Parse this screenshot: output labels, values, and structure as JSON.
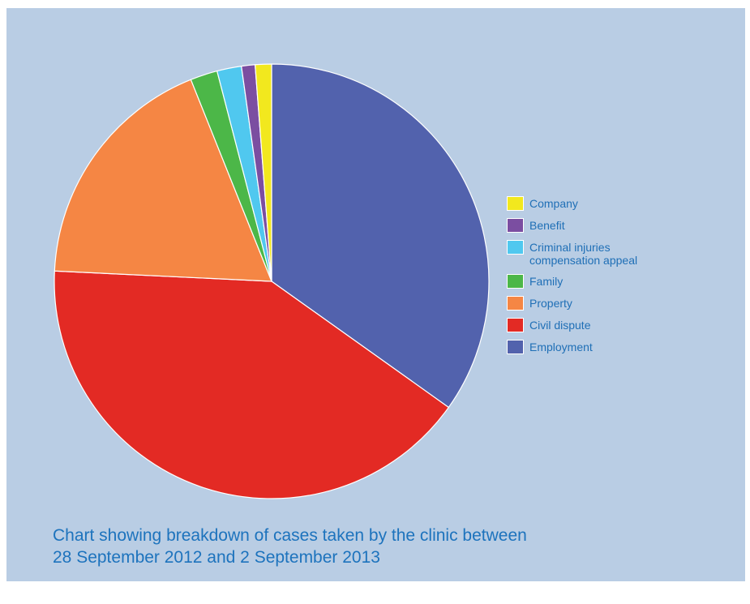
{
  "chart_data": {
    "type": "pie",
    "slices": [
      {
        "label": "Employment",
        "value": 34.5,
        "color": "#5262ad"
      },
      {
        "label": "Civil dispute",
        "value": 40.5,
        "color": "#e32a24"
      },
      {
        "label": "Property",
        "value": 18.0,
        "color": "#f58644"
      },
      {
        "label": "Family",
        "value": 2.0,
        "color": "#4cb748"
      },
      {
        "label": "Criminal injuries compensation appeal",
        "value": 1.8,
        "color": "#50c8ef"
      },
      {
        "label": "Benefit",
        "value": 1.0,
        "color": "#7b4ea1"
      },
      {
        "label": "Company",
        "value": 1.2,
        "color": "#f2e81e"
      }
    ],
    "legend_order": [
      "Company",
      "Benefit",
      "Criminal injuries compensation appeal",
      "Family",
      "Property",
      "Civil dispute",
      "Employment"
    ],
    "start": "12 o'clock",
    "direction": "clockwise",
    "legend_position": "right"
  },
  "legend": {
    "items": [
      {
        "label_lines": [
          "Company"
        ],
        "color": "#f2e81e"
      },
      {
        "label_lines": [
          "Benefit"
        ],
        "color": "#7b4ea1"
      },
      {
        "label_lines": [
          "Criminal injuries",
          "compensation appeal"
        ],
        "color": "#50c8ef"
      },
      {
        "label_lines": [
          "Family"
        ],
        "color": "#4cb748"
      },
      {
        "label_lines": [
          "Property"
        ],
        "color": "#f58644"
      },
      {
        "label_lines": [
          "Civil dispute"
        ],
        "color": "#e32a24"
      },
      {
        "label_lines": [
          "Employment"
        ],
        "color": "#5262ad"
      }
    ]
  },
  "caption": {
    "line1": "Chart showing breakdown of cases taken by the clinic between",
    "line2": "28 September 2012 and 2 September 2013"
  },
  "colors": {
    "background": "#b9cde4",
    "text_accent": "#1d73bd"
  }
}
